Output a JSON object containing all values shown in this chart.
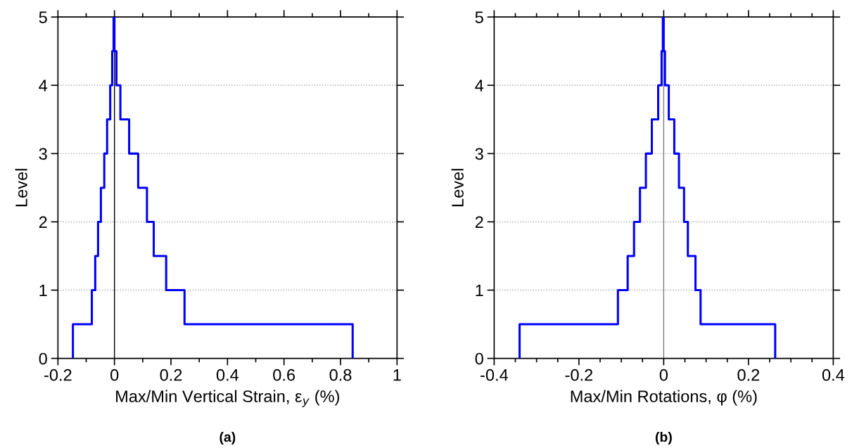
{
  "chart_data": [
    {
      "type": "line",
      "xlabel": "Max/Min Vertical Strain, ε$_{y}$ (%)",
      "ylabel": "Level",
      "annotations": [
        "(a)"
      ],
      "xlim": [
        -0.2,
        1
      ],
      "ylim": [
        0,
        5
      ],
      "xticks": [
        -0.2,
        {
          "value": -0.1,
          "label": null
        },
        0,
        {
          "value": 0.1,
          "label": null
        },
        0.2,
        {
          "value": 0.3,
          "label": null
        },
        0.4,
        {
          "value": 0.5,
          "label": null
        },
        0.6,
        {
          "value": 0.7,
          "label": null
        },
        0.8,
        {
          "value": 0.9,
          "label": null
        },
        1
      ],
      "yticks": [
        0,
        1,
        2,
        3,
        4,
        5
      ],
      "grid": "y",
      "line_style": "solid",
      "marker": "none",
      "ref_lines": [
        {
          "axis": "x",
          "value": 0,
          "color": "#000000"
        }
      ],
      "series": [
        {
          "color": "#0000ff",
          "x": [
            0.843,
            0.843,
            0.248,
            0.248,
            0.183,
            0.183,
            0.139,
            0.139,
            0.115,
            0.115,
            0.084,
            0.084,
            0.052,
            0.052,
            0.021,
            0.021,
            0.007,
            0.007,
            0,
            0
          ],
          "values": [
            0,
            0.5,
            0.5,
            1,
            1,
            1.5,
            1.5,
            2,
            2,
            2.5,
            2.5,
            3,
            3,
            3.5,
            3.5,
            4,
            4,
            4.5,
            4.5,
            5
          ]
        },
        {
          "color": "#0000ff",
          "x": [
            -0.147,
            -0.147,
            -0.08,
            -0.08,
            -0.068,
            -0.068,
            -0.058,
            -0.058,
            -0.048,
            -0.048,
            -0.036,
            -0.036,
            -0.026,
            -0.026,
            -0.015,
            -0.015,
            -0.008,
            -0.008,
            -0.003,
            -0.003
          ],
          "values": [
            0,
            0.5,
            0.5,
            1,
            1,
            1.5,
            1.5,
            2,
            2,
            2.5,
            2.5,
            3,
            3,
            3.5,
            3.5,
            4,
            4,
            4.5,
            4.5,
            5
          ]
        }
      ]
    },
    {
      "type": "line",
      "xlabel": "Max/Min Rotations, φ (%)",
      "ylabel": "Level",
      "annotations": [
        "(b)"
      ],
      "xlim": [
        -0.4,
        0.4
      ],
      "ylim": [
        0,
        5
      ],
      "xticks": [
        -0.4,
        {
          "value": -0.35,
          "label": null
        },
        {
          "value": -0.3,
          "label": null
        },
        {
          "value": -0.25,
          "label": null
        },
        -0.2,
        {
          "value": -0.15,
          "label": null
        },
        {
          "value": -0.1,
          "label": null
        },
        {
          "value": -0.05,
          "label": null
        },
        0,
        {
          "value": 0.05,
          "label": null
        },
        {
          "value": 0.1,
          "label": null
        },
        {
          "value": 0.15,
          "label": null
        },
        0.2,
        {
          "value": 0.25,
          "label": null
        },
        {
          "value": 0.3,
          "label": null
        },
        {
          "value": 0.35,
          "label": null
        },
        0.4
      ],
      "yticks": [
        0,
        1,
        2,
        3,
        4,
        5
      ],
      "grid": "y",
      "line_style": "solid",
      "marker": "none",
      "ref_lines": [
        {
          "axis": "x",
          "value": 0,
          "color": "#808080"
        }
      ],
      "series": [
        {
          "color": "#0000ff",
          "x": [
            0.263,
            0.263,
            0.087,
            0.087,
            0.075,
            0.075,
            0.057,
            0.057,
            0.048,
            0.048,
            0.036,
            0.036,
            0.025,
            0.025,
            0.012,
            0.012,
            0.003,
            0.003,
            0,
            0
          ],
          "values": [
            0,
            0.5,
            0.5,
            1,
            1,
            1.5,
            1.5,
            2,
            2,
            2.5,
            2.5,
            3,
            3,
            3.5,
            3.5,
            4,
            4,
            4.5,
            4.5,
            5
          ]
        },
        {
          "color": "#0000ff",
          "x": [
            -0.34,
            -0.34,
            -0.108,
            -0.108,
            -0.085,
            -0.085,
            -0.07,
            -0.07,
            -0.056,
            -0.056,
            -0.042,
            -0.042,
            -0.028,
            -0.028,
            -0.013,
            -0.013,
            -0.005,
            -0.005,
            -0.002,
            -0.002
          ],
          "values": [
            0,
            0.5,
            0.5,
            1,
            1,
            1.5,
            1.5,
            2,
            2,
            2.5,
            2.5,
            3,
            3,
            3.5,
            3.5,
            4,
            4,
            4.5,
            4.5,
            5
          ]
        }
      ]
    }
  ]
}
